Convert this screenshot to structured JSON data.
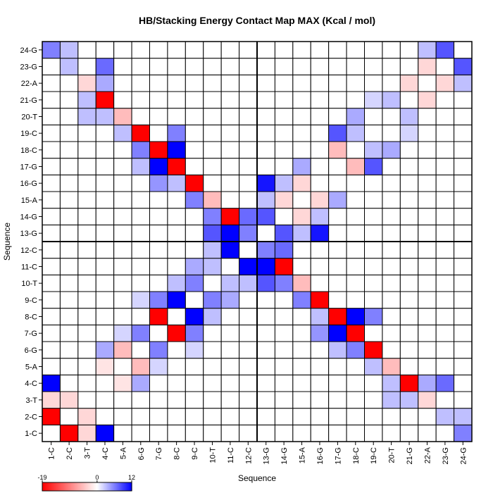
{
  "chart_data": {
    "type": "heatmap",
    "title": "HB/Stacking Energy Contact Map MAX (Kcal / mol)",
    "xlabel": "Sequence",
    "ylabel": "Sequence",
    "labels": [
      "1-C",
      "2-C",
      "3-T",
      "4-C",
      "5-A",
      "6-G",
      "7-G",
      "8-C",
      "9-C",
      "10-T",
      "11-C",
      "12-C",
      "13-G",
      "14-G",
      "15-A",
      "16-G",
      "17-G",
      "18-C",
      "19-C",
      "20-T",
      "21-G",
      "22-A",
      "23-G",
      "24-G"
    ],
    "value_range": [
      -19,
      12
    ],
    "legend_ticks": [
      "-19",
      "0",
      "12"
    ],
    "colors": {
      "negative": "#ff0000",
      "zero": "#ffffff",
      "positive": "#0000ff"
    },
    "grid": true,
    "divider_after_index": 11,
    "pairs": [
      [
        1,
        2,
        -19
      ],
      [
        1,
        4,
        12
      ],
      [
        1,
        3,
        -3
      ],
      [
        1,
        24,
        6
      ],
      [
        2,
        3,
        -3
      ],
      [
        2,
        24,
        3
      ],
      [
        2,
        23,
        3
      ],
      [
        3,
        22,
        -3
      ],
      [
        3,
        20,
        3
      ],
      [
        3,
        21,
        3
      ],
      [
        4,
        5,
        -2
      ],
      [
        4,
        6,
        4
      ],
      [
        4,
        21,
        -19
      ],
      [
        4,
        22,
        4
      ],
      [
        4,
        23,
        7
      ],
      [
        4,
        20,
        3
      ],
      [
        5,
        6,
        -5
      ],
      [
        5,
        7,
        2
      ],
      [
        5,
        20,
        -5
      ],
      [
        5,
        19,
        3
      ],
      [
        6,
        7,
        6
      ],
      [
        6,
        9,
        2
      ],
      [
        6,
        19,
        -19
      ],
      [
        6,
        18,
        6
      ],
      [
        6,
        17,
        3
      ],
      [
        7,
        8,
        -19
      ],
      [
        7,
        9,
        6
      ],
      [
        7,
        17,
        12
      ],
      [
        7,
        18,
        -19
      ],
      [
        7,
        16,
        5
      ],
      [
        8,
        9,
        12
      ],
      [
        8,
        16,
        3
      ],
      [
        8,
        17,
        -19
      ],
      [
        8,
        18,
        12
      ],
      [
        8,
        10,
        3
      ],
      [
        8,
        19,
        6
      ],
      [
        9,
        10,
        6
      ],
      [
        9,
        11,
        4
      ],
      [
        9,
        16,
        -19
      ],
      [
        9,
        15,
        6
      ],
      [
        10,
        11,
        3
      ],
      [
        10,
        12,
        3
      ],
      [
        10,
        15,
        -5
      ],
      [
        10,
        14,
        6
      ],
      [
        10,
        13,
        8
      ],
      [
        11,
        12,
        12
      ],
      [
        11,
        14,
        -19
      ],
      [
        11,
        13,
        12
      ],
      [
        12,
        13,
        6
      ],
      [
        12,
        14,
        7
      ],
      [
        13,
        14,
        8
      ],
      [
        13,
        16,
        11
      ],
      [
        13,
        15,
        3
      ],
      [
        14,
        15,
        -3
      ],
      [
        14,
        16,
        3
      ],
      [
        15,
        16,
        -3
      ],
      [
        15,
        17,
        4
      ],
      [
        17,
        18,
        -5
      ],
      [
        17,
        19,
        8
      ],
      [
        18,
        20,
        4
      ],
      [
        18,
        19,
        3
      ],
      [
        19,
        21,
        2
      ],
      [
        20,
        21,
        3
      ],
      [
        21,
        22,
        -3
      ],
      [
        22,
        23,
        -3
      ],
      [
        22,
        24,
        3
      ],
      [
        23,
        24,
        8
      ]
    ]
  }
}
